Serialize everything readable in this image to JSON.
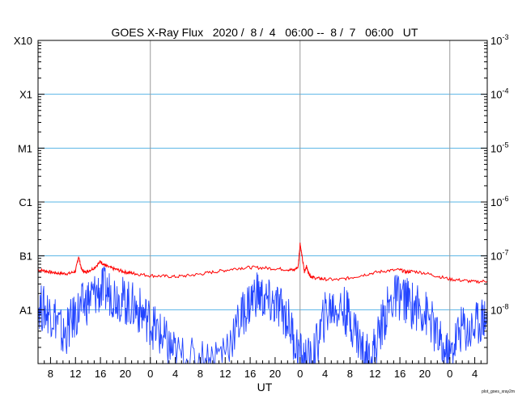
{
  "chart_data": {
    "type": "line",
    "title": "GOES X-Ray Flux   2020 /  8 /  4   06:00 --  8 /  7   06:00   UT",
    "xlabel": "UT",
    "footnote": "plot_goes_xray2m",
    "x_range_hours_ut": [
      6,
      78
    ],
    "ylim": [
      1e-09,
      0.001
    ],
    "y_scale": "log",
    "grid": "horizontal at each class level, vertical at 00 UT each day",
    "flare_class_labels": [
      {
        "label": "X10",
        "flux": 0.001
      },
      {
        "label": "X1",
        "flux": 0.0001
      },
      {
        "label": "M1",
        "flux": 1e-05
      },
      {
        "label": "C1",
        "flux": 1e-06
      },
      {
        "label": "B1",
        "flux": 1e-07
      },
      {
        "label": "A1",
        "flux": 1e-08
      }
    ],
    "right_ticks": [
      {
        "base": "10",
        "exp": "-3",
        "flux": 0.001
      },
      {
        "base": "10",
        "exp": "-4",
        "flux": 0.0001
      },
      {
        "base": "10",
        "exp": "-5",
        "flux": 1e-05
      },
      {
        "base": "10",
        "exp": "-6",
        "flux": 1e-06
      },
      {
        "base": "10",
        "exp": "-7",
        "flux": 1e-07
      },
      {
        "base": "10",
        "exp": "-8",
        "flux": 1e-08
      }
    ],
    "x_ticks": [
      {
        "label": "8",
        "hour": 8
      },
      {
        "label": "12",
        "hour": 12
      },
      {
        "label": "16",
        "hour": 16
      },
      {
        "label": "20",
        "hour": 20
      },
      {
        "label": "0",
        "hour": 24
      },
      {
        "label": "4",
        "hour": 28
      },
      {
        "label": "8",
        "hour": 32
      },
      {
        "label": "12",
        "hour": 36
      },
      {
        "label": "16",
        "hour": 40
      },
      {
        "label": "20",
        "hour": 44
      },
      {
        "label": "0",
        "hour": 48
      },
      {
        "label": "4",
        "hour": 52
      },
      {
        "label": "8",
        "hour": 56
      },
      {
        "label": "12",
        "hour": 60
      },
      {
        "label": "16",
        "hour": 64
      },
      {
        "label": "20",
        "hour": 68
      },
      {
        "label": "0",
        "hour": 72
      },
      {
        "label": "4",
        "hour": 76
      }
    ],
    "day_boundaries_hours": [
      24,
      48,
      72
    ],
    "colors": {
      "long_channel": "#ff0000",
      "short_channel": "#2244ff",
      "grid": "#5ab4e6",
      "day_line": "#999999"
    },
    "series": [
      {
        "color": "#ff0000",
        "x": [
          6,
          7,
          8,
          9,
          10,
          11,
          12,
          12.5,
          13,
          13.5,
          14,
          15,
          16,
          16.5,
          17,
          18,
          19,
          20,
          21,
          22,
          24,
          26,
          28,
          30,
          32,
          34,
          36,
          38,
          40,
          42,
          44,
          46,
          47,
          47.7,
          48,
          48.3,
          48.7,
          49,
          49.3,
          49.7,
          50,
          51,
          52,
          54,
          56,
          58,
          60,
          62,
          64,
          65,
          66,
          68,
          70,
          72,
          74,
          76,
          78
        ],
        "y": [
          5.5e-08,
          5.3e-08,
          5e-08,
          4.8e-08,
          4.7e-08,
          4.7e-08,
          5.2e-08,
          9.8e-08,
          5.5e-08,
          5e-08,
          5.2e-08,
          6e-08,
          7.8e-08,
          7e-08,
          6.4e-08,
          5.8e-08,
          5.4e-08,
          5e-08,
          4.8e-08,
          4.6e-08,
          4.3e-08,
          4.2e-08,
          4.1e-08,
          4.3e-08,
          4.6e-08,
          5e-08,
          5.4e-08,
          5.9e-08,
          6.1e-08,
          6e-08,
          5.8e-08,
          5.6e-08,
          5.4e-08,
          6.3e-08,
          1.7e-07,
          1e-07,
          5e-08,
          6.5e-08,
          5e-08,
          4.2e-08,
          4e-08,
          3.8e-08,
          3.7e-08,
          3.6e-08,
          3.9e-08,
          4.4e-08,
          4.9e-08,
          5.3e-08,
          5.5e-08,
          5e-08,
          5.2e-08,
          4.8e-08,
          4.2e-08,
          3.7e-08,
          3.5e-08,
          3.3e-08,
          3.4e-08
        ]
      },
      {
        "color": "#2244ff",
        "x": [
          6,
          7,
          8,
          9,
          10,
          11,
          12,
          13,
          14,
          15,
          16,
          17,
          18,
          19,
          20,
          21,
          22,
          23,
          24,
          25,
          26,
          27,
          28,
          30,
          32,
          34,
          36,
          38,
          39,
          40,
          41,
          42,
          43,
          44,
          45,
          46,
          47,
          48,
          49,
          50,
          51,
          52,
          53,
          54,
          55,
          56,
          57,
          58,
          59,
          60,
          61,
          62,
          63,
          64,
          65,
          66,
          67,
          68,
          69,
          70,
          71,
          72,
          73,
          74,
          75,
          76,
          77,
          78
        ],
        "y": [
          1.2e-08,
          1e-08,
          9e-09,
          7e-09,
          3e-09,
          5e-09,
          8e-09,
          1.1e-08,
          1.5e-08,
          1.9e-08,
          2.3e-08,
          2.2e-08,
          2e-08,
          1.7e-08,
          1.4e-08,
          1.2e-08,
          1e-08,
          8e-09,
          6e-09,
          4e-09,
          3e-09,
          2e-09,
          1.5e-09,
          1.1e-09,
          1.1e-09,
          1.2e-09,
          2e-09,
          5e-09,
          9e-09,
          1.4e-08,
          2.1e-08,
          1.6e-08,
          1.3e-08,
          1.2e-08,
          1e-08,
          7e-09,
          3e-09,
          1.4e-09,
          1.1e-09,
          1.1e-09,
          3e-09,
          8e-09,
          1.1e-08,
          1.1e-08,
          1e-08,
          7e-09,
          4e-09,
          1.7e-09,
          1.2e-09,
          2e-09,
          5e-09,
          1e-08,
          1.6e-08,
          1.8e-08,
          1.5e-08,
          1.2e-08,
          1.1e-08,
          9e-09,
          6e-09,
          3e-09,
          1.6e-09,
          1.3e-09,
          3e-09,
          5e-09,
          4e-09,
          5e-09,
          7e-09,
          8e-09
        ]
      }
    ]
  }
}
